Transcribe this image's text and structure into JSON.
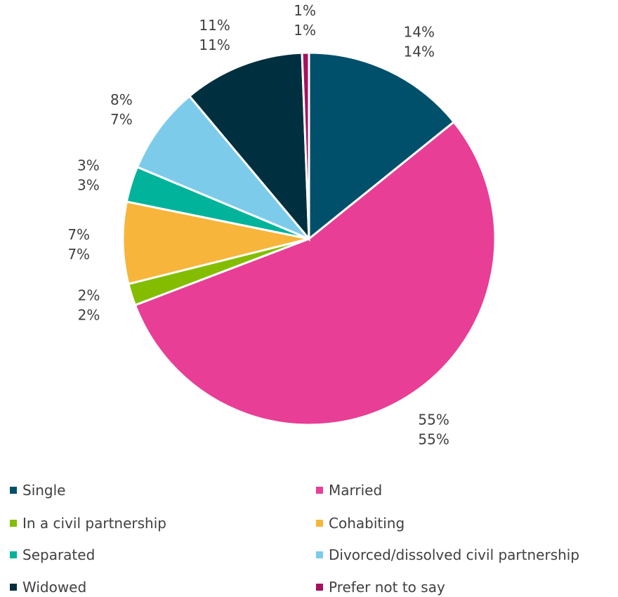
{
  "chart_data": {
    "type": "pie",
    "title": "",
    "series": [
      {
        "name": "",
        "values": [
          14,
          55,
          2,
          7,
          3,
          8,
          11,
          1
        ]
      },
      {
        "name": "",
        "values": [
          14,
          55,
          2,
          7,
          3,
          7,
          11,
          1
        ]
      }
    ],
    "slices": [
      {
        "label": "Single",
        "value": 14.2,
        "labels": [
          "14%",
          "14%"
        ],
        "color": "#00506B"
      },
      {
        "label": "Married",
        "value": 55.0,
        "labels": [
          "55%",
          "55%"
        ],
        "color": "#E83E96"
      },
      {
        "label": "In a civil partnership",
        "value": 1.9,
        "labels": [
          "2%",
          "2%"
        ],
        "color": "#84BD00"
      },
      {
        "label": "Cohabiting",
        "value": 7.1,
        "labels": [
          "7%",
          "7%"
        ],
        "color": "#F7B53B"
      },
      {
        "label": "Separated",
        "value": 3.1,
        "labels": [
          "3%",
          "3%"
        ],
        "color": "#00B39A"
      },
      {
        "label": "Divorced/dissolved civil partnership",
        "value": 7.6,
        "labels": [
          "8%",
          "7%"
        ],
        "color": "#7CCBEB"
      },
      {
        "label": "Widowed",
        "value": 10.5,
        "labels": [
          "11%",
          "11%"
        ],
        "color": "#00303F"
      },
      {
        "label": "Prefer not to say",
        "value": 0.6,
        "labels": [
          "1%",
          "1%"
        ],
        "color": "#A6105E"
      }
    ],
    "legend_position": "bottom"
  }
}
